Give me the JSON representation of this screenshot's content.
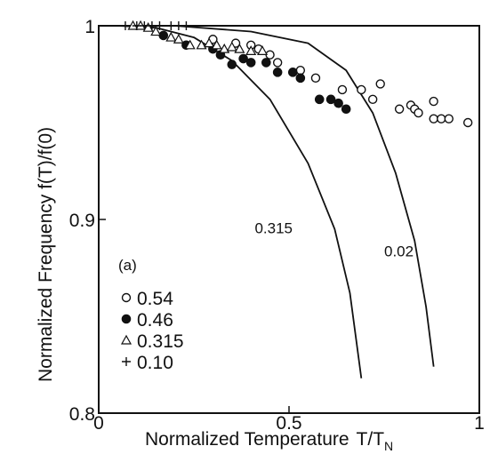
{
  "chart_data": {
    "type": "scatter",
    "panel_label": "(a)",
    "xlabel": "Normalized Temperature",
    "xlabel_symbol": "T/T",
    "xlabel_subscript": "N",
    "ylabel": "Normalized Frequency  f(T)/f(0)",
    "xlim": [
      0,
      1
    ],
    "ylim": [
      0.8,
      1
    ],
    "x_ticks": [
      {
        "value": 0,
        "label": "0"
      },
      {
        "value": 0.5,
        "label": "0.5"
      },
      {
        "value": 1,
        "label": "1"
      }
    ],
    "y_ticks": [
      {
        "value": 0.8,
        "label": "0.8"
      },
      {
        "value": 0.9,
        "label": "0.9"
      },
      {
        "value": 1,
        "label": "1"
      }
    ],
    "grid": false,
    "legend_position": "bottom-left",
    "series": [
      {
        "name": "0.54",
        "marker": "open-circle",
        "points": [
          [
            0.3,
            0.993
          ],
          [
            0.36,
            0.991
          ],
          [
            0.4,
            0.99
          ],
          [
            0.42,
            0.988
          ],
          [
            0.45,
            0.985
          ],
          [
            0.47,
            0.981
          ],
          [
            0.53,
            0.977
          ],
          [
            0.57,
            0.973
          ],
          [
            0.64,
            0.967
          ],
          [
            0.69,
            0.967
          ],
          [
            0.72,
            0.962
          ],
          [
            0.74,
            0.97
          ],
          [
            0.79,
            0.957
          ],
          [
            0.82,
            0.959
          ],
          [
            0.83,
            0.957
          ],
          [
            0.84,
            0.955
          ],
          [
            0.88,
            0.961
          ],
          [
            0.88,
            0.952
          ],
          [
            0.9,
            0.952
          ],
          [
            0.92,
            0.952
          ],
          [
            0.97,
            0.95
          ]
        ]
      },
      {
        "name": "0.46",
        "marker": "filled-circle",
        "points": [
          [
            0.17,
            0.995
          ],
          [
            0.23,
            0.99
          ],
          [
            0.3,
            0.988
          ],
          [
            0.32,
            0.985
          ],
          [
            0.35,
            0.98
          ],
          [
            0.38,
            0.983
          ],
          [
            0.4,
            0.981
          ],
          [
            0.44,
            0.981
          ],
          [
            0.47,
            0.976
          ],
          [
            0.51,
            0.976
          ],
          [
            0.53,
            0.973
          ],
          [
            0.58,
            0.962
          ],
          [
            0.61,
            0.962
          ],
          [
            0.63,
            0.96
          ],
          [
            0.65,
            0.957
          ]
        ]
      },
      {
        "name": "0.315",
        "marker": "open-triangle",
        "points": [
          [
            0.09,
            1.0
          ],
          [
            0.11,
            1.0
          ],
          [
            0.13,
            0.999
          ],
          [
            0.15,
            0.997
          ],
          [
            0.19,
            0.994
          ],
          [
            0.21,
            0.993
          ],
          [
            0.24,
            0.99
          ],
          [
            0.27,
            0.99
          ],
          [
            0.29,
            0.991
          ],
          [
            0.31,
            0.99
          ],
          [
            0.33,
            0.988
          ],
          [
            0.35,
            0.989
          ],
          [
            0.37,
            0.988
          ],
          [
            0.4,
            0.987
          ],
          [
            0.43,
            0.987
          ]
        ]
      },
      {
        "name": "0.10",
        "marker": "plus",
        "points": [
          [
            0.07,
            1.0
          ],
          [
            0.1,
            1.0
          ],
          [
            0.12,
            1.0
          ],
          [
            0.14,
            1.0
          ],
          [
            0.16,
            1.0
          ],
          [
            0.19,
            1.0
          ],
          [
            0.21,
            1.0
          ],
          [
            0.23,
            1.0
          ]
        ]
      }
    ],
    "curves": [
      {
        "label": "0.315",
        "label_at": [
          0.41,
          0.893
        ],
        "points": [
          [
            0.05,
            1.0
          ],
          [
            0.15,
            0.999
          ],
          [
            0.25,
            0.994
          ],
          [
            0.35,
            0.982
          ],
          [
            0.45,
            0.962
          ],
          [
            0.55,
            0.929
          ],
          [
            0.62,
            0.895
          ],
          [
            0.66,
            0.862
          ],
          [
            0.69,
            0.818
          ]
        ]
      },
      {
        "label": "0.02",
        "label_at": [
          0.75,
          0.881
        ],
        "points": [
          [
            0.05,
            1.0
          ],
          [
            0.2,
            1.0
          ],
          [
            0.4,
            0.997
          ],
          [
            0.55,
            0.991
          ],
          [
            0.65,
            0.977
          ],
          [
            0.72,
            0.955
          ],
          [
            0.78,
            0.924
          ],
          [
            0.83,
            0.889
          ],
          [
            0.86,
            0.855
          ],
          [
            0.88,
            0.824
          ]
        ]
      }
    ]
  }
}
